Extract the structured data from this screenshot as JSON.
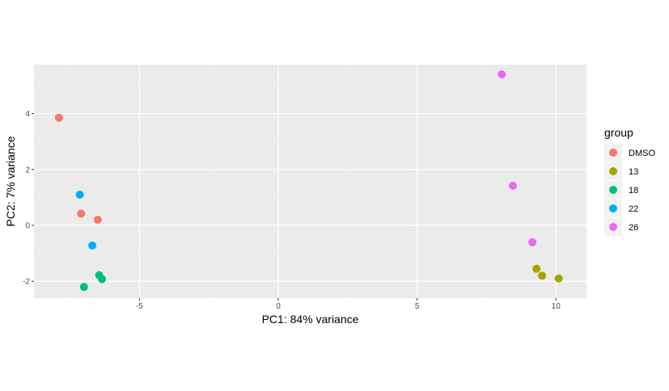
{
  "chart_data": {
    "type": "scatter",
    "title": "",
    "xlabel": "PC1: 84% variance",
    "ylabel": "PC2: 7% variance",
    "xlim": [
      -8.8,
      11.1
    ],
    "ylim": [
      -2.6,
      5.75
    ],
    "xticks": [
      -5,
      0,
      5,
      10
    ],
    "xtick_labels": [
      "-5",
      "0",
      "5",
      "10"
    ],
    "yticks": [
      -2,
      0,
      2,
      4
    ],
    "ytick_labels": [
      "-2",
      "0",
      "2",
      "4"
    ],
    "grid": true,
    "legend": {
      "title": "group",
      "position": "right"
    },
    "series": [
      {
        "name": "DMSO",
        "color": "#F8766D",
        "points": [
          [
            -7.9,
            3.85
          ],
          [
            -7.1,
            0.42
          ],
          [
            -6.5,
            0.2
          ]
        ]
      },
      {
        "name": "13",
        "color": "#A3A500",
        "points": [
          [
            9.3,
            -1.55
          ],
          [
            9.5,
            -1.8
          ],
          [
            10.1,
            -1.9
          ]
        ]
      },
      {
        "name": "18",
        "color": "#00BF7D",
        "points": [
          [
            -6.45,
            -1.78
          ],
          [
            -6.35,
            -1.92
          ],
          [
            -7.0,
            -2.2
          ]
        ]
      },
      {
        "name": "22",
        "color": "#00B0F6",
        "points": [
          [
            -7.15,
            1.1
          ],
          [
            -6.7,
            -0.72
          ]
        ]
      },
      {
        "name": "26",
        "color": "#E76BF3",
        "points": [
          [
            8.05,
            5.4
          ],
          [
            8.45,
            1.42
          ],
          [
            9.15,
            -0.6
          ]
        ]
      }
    ]
  }
}
